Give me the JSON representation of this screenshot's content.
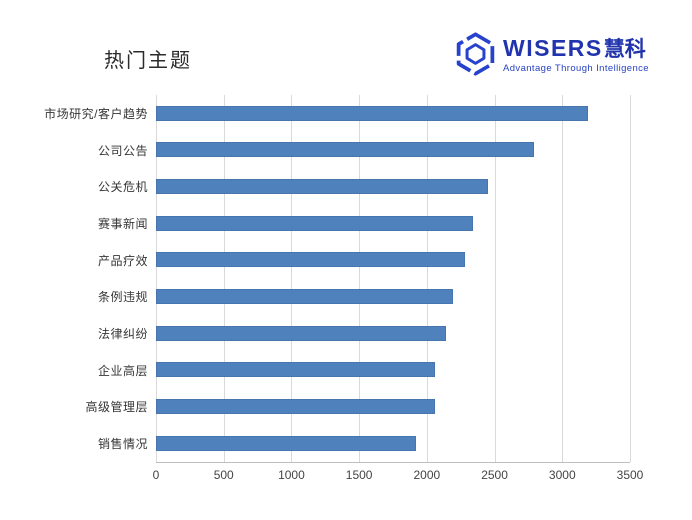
{
  "title": "热门主题",
  "logo": {
    "icon": "wisers-hexagon-icon",
    "brand_en": "WISERS",
    "brand_cjk": "慧科",
    "tagline": "Advantage Through Intelligence",
    "brand_color": "#2133ad",
    "icon_color": "#2742cc"
  },
  "chart_data": {
    "type": "bar",
    "orientation": "horizontal",
    "title": "热门主题",
    "categories": [
      "市场研究/客户趋势",
      "公司公告",
      "公关危机",
      "赛事新闻",
      "产品疗效",
      "条例违规",
      "法律纠纷",
      "企业高层",
      "高级管理层",
      "销售情况"
    ],
    "values": [
      3190,
      2790,
      2450,
      2340,
      2280,
      2190,
      2140,
      2060,
      2060,
      1920
    ],
    "xlabel": "",
    "ylabel": "",
    "xlim": [
      0,
      3500
    ],
    "xticks": [
      0,
      500,
      1000,
      1500,
      2000,
      2500,
      3000,
      3500
    ],
    "grid": "vertical",
    "legend": "none",
    "bar_color": "#4f81bd",
    "gridline_color": "#d9d9d9",
    "axis_line_color": "#bfbfbf"
  }
}
